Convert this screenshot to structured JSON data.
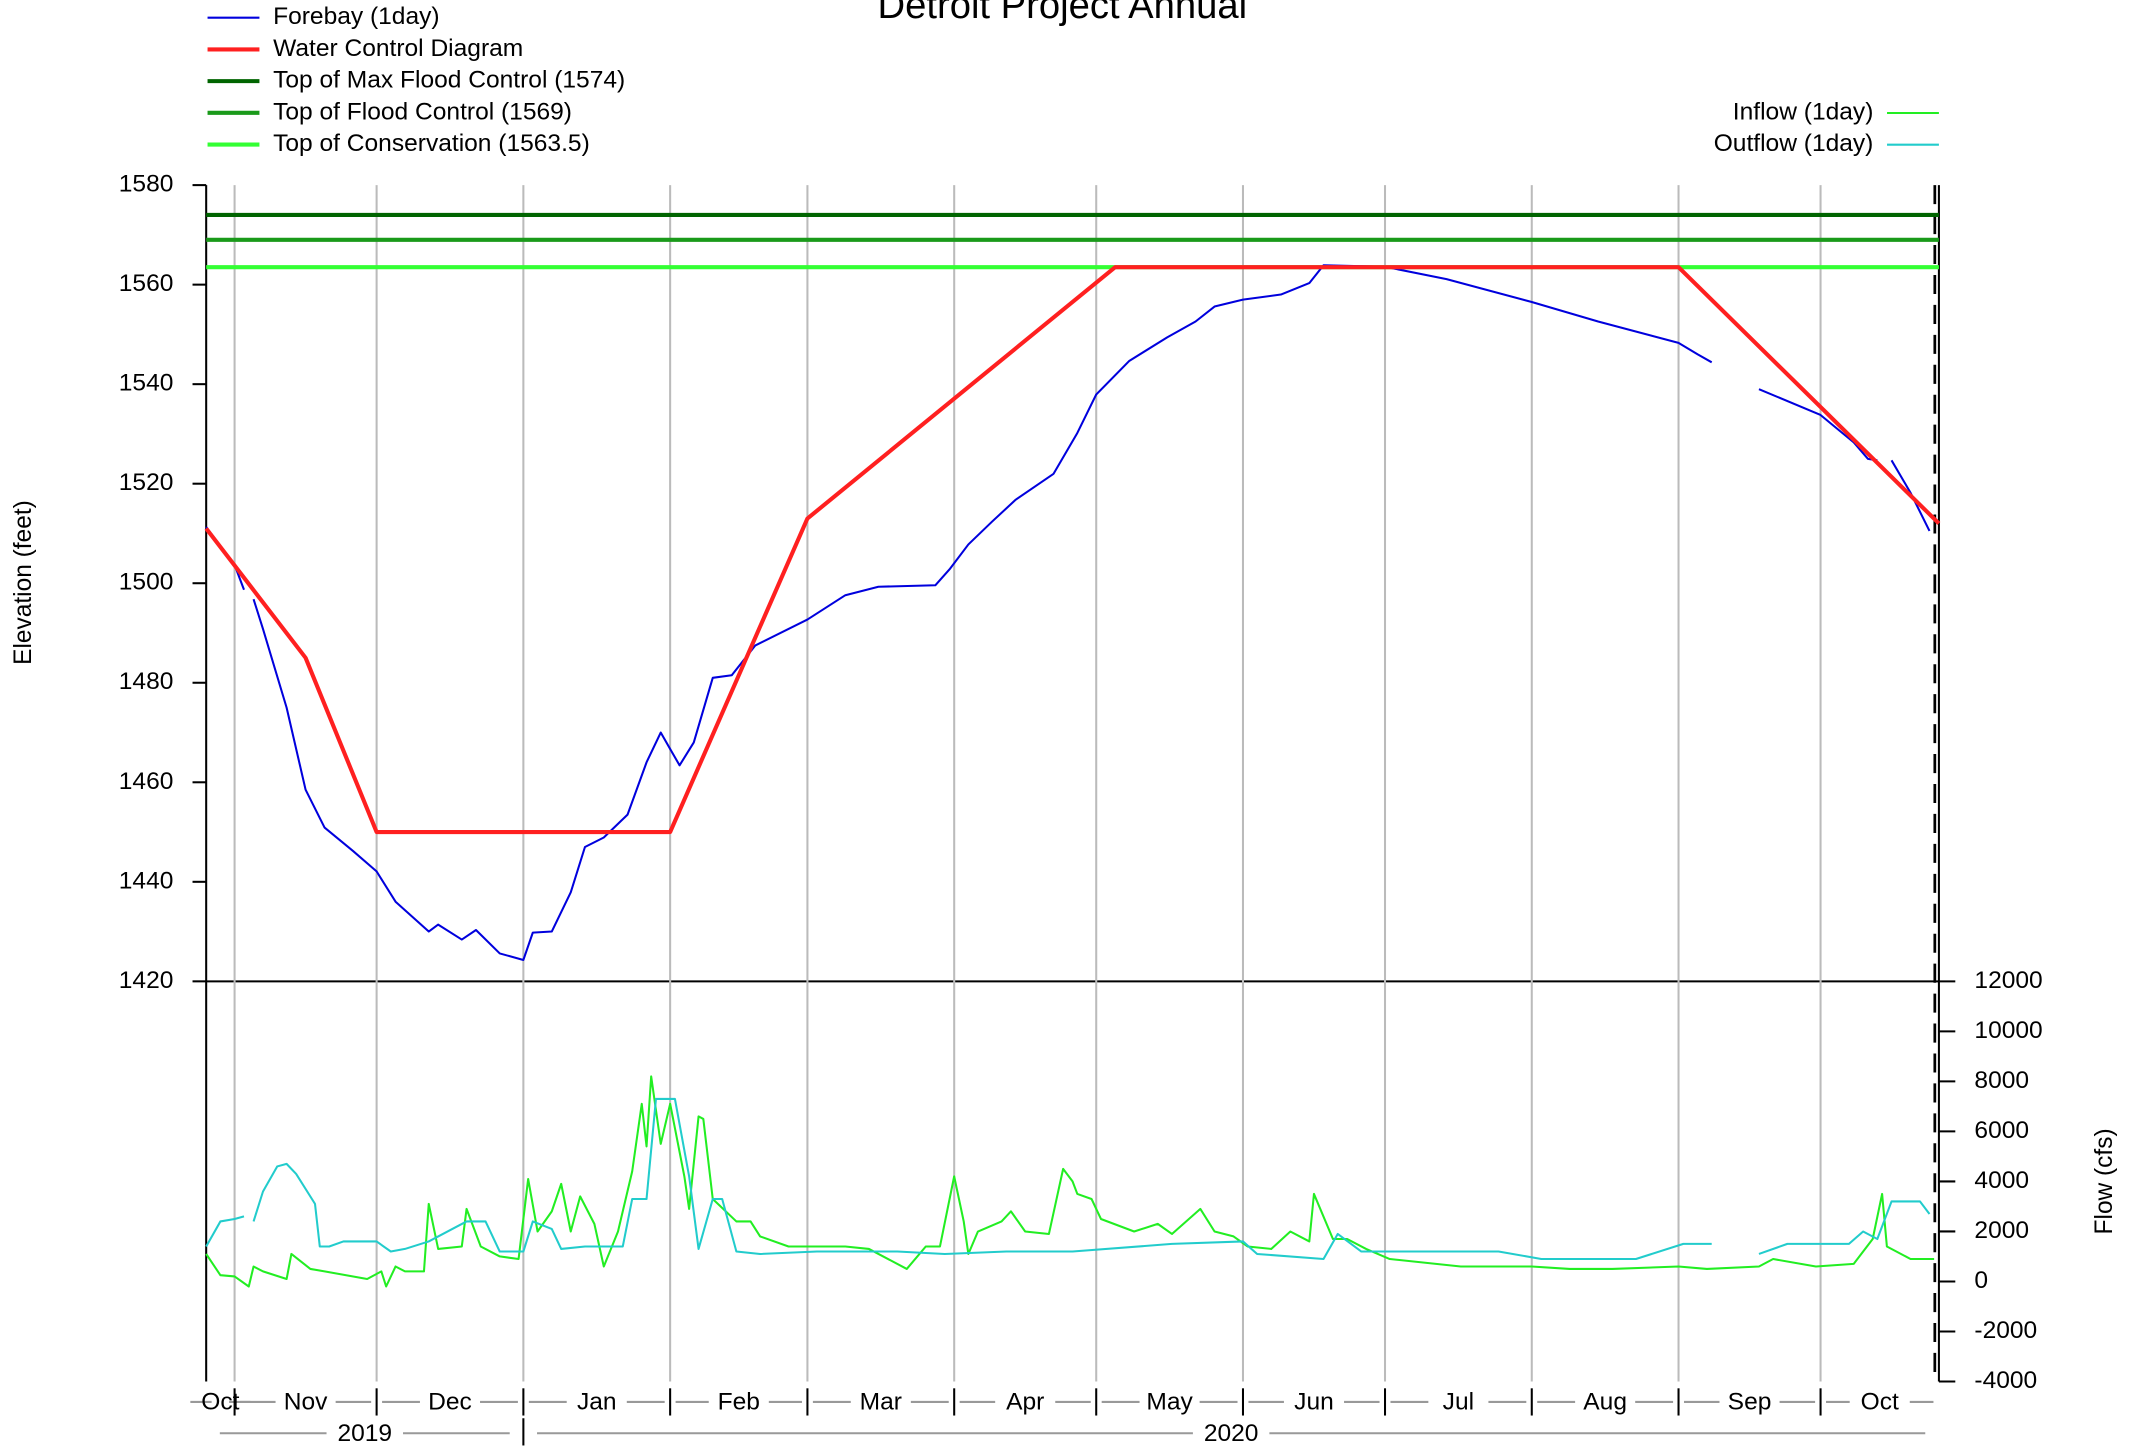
{
  "chart_data": [
    {
      "type": "line",
      "title": "Detroit Project Annual",
      "ylabel": "Elevation (feet)",
      "xlim": [
        "2019-10-26",
        "2020-10-26"
      ],
      "ylim": [
        1420,
        1580
      ],
      "yticks": [
        1420,
        1440,
        1460,
        1480,
        1500,
        1520,
        1540,
        1560,
        1580
      ],
      "series": [
        {
          "name": "Forebay (1day)",
          "color": "#0000dd",
          "width": 1.5,
          "x": [
            "2019-10-26",
            "2019-11-01",
            "2019-11-03",
            "2019-11-04",
            "2019-11-05",
            "2019-11-07",
            "2019-11-12",
            "2019-11-16",
            "2019-11-20",
            "2019-11-26",
            "2019-12-01",
            "2019-12-05",
            "2019-12-12",
            "2019-12-14",
            "2019-12-19",
            "2019-12-22",
            "2019-12-27",
            "2020-01-01",
            "2020-01-03",
            "2020-01-07",
            "2020-01-11",
            "2020-01-14",
            "2020-01-18",
            "2020-01-23",
            "2020-01-27",
            "2020-01-30",
            "2020-02-01",
            "2020-02-03",
            "2020-02-06",
            "2020-02-10",
            "2020-02-14",
            "2020-02-19",
            "2020-03-01",
            "2020-03-09",
            "2020-03-16",
            "2020-03-28",
            "2020-03-31",
            "2020-04-04",
            "2020-04-09",
            "2020-04-14",
            "2020-04-22",
            "2020-04-27",
            "2020-05-01",
            "2020-05-08",
            "2020-05-16",
            "2020-05-22",
            "2020-05-26",
            "2020-06-01",
            "2020-06-09",
            "2020-06-15",
            "2020-06-18",
            "2020-07-01",
            "2020-07-14",
            "2020-08-01",
            "2020-08-15",
            "2020-09-01",
            "2020-09-05",
            "2020-09-08",
            "2020-09-12",
            "2020-09-18",
            "2020-10-01",
            "2020-10-08",
            "2020-10-11",
            "2020-10-13",
            "2020-10-14",
            "2020-10-16",
            "2020-10-20",
            "2020-10-24"
          ],
          "values": [
            1511.3,
            1503.7,
            1498.7,
            null,
            1496.8,
            1490.8,
            1475,
            1458.5,
            1450.9,
            1446.2,
            1442.1,
            1436,
            1430,
            1431.4,
            1428.4,
            1430.3,
            1425.6,
            1424.3,
            1429.8,
            1430,
            1437.9,
            1447,
            1448.9,
            1453.5,
            1464,
            1470,
            1466.7,
            1463.4,
            1468,
            1481,
            1481.5,
            1487.5,
            1492.7,
            1497.6,
            1499.3,
            1499.6,
            1502.8,
            1507.8,
            1512.4,
            1516.8,
            1522,
            1530.2,
            1537.9,
            1544.7,
            1549.4,
            1552.6,
            1555.6,
            1557,
            1558,
            1560.3,
            1563.9,
            1563.6,
            1561.1,
            1556.5,
            1552.6,
            1548.3,
            1546,
            1544.4,
            null,
            1539,
            1533.8,
            1528.3,
            1525,
            1524.7,
            null,
            1524.7,
            1518.2,
            1510.5
          ]
        },
        {
          "name": "Water Control Diagram",
          "color": "#ff2020",
          "width": 3,
          "x": [
            "2019-10-26",
            "2019-11-16",
            "2019-12-01",
            "2020-02-01",
            "2020-03-01",
            "2020-05-05",
            "2020-09-01",
            "2020-10-26"
          ],
          "values": [
            1511,
            1485,
            1450,
            1450,
            1513,
            1563.5,
            1563.5,
            1512
          ]
        }
      ],
      "hlines": [
        {
          "name": "Top of Max Flood Control (1574)",
          "value": 1574,
          "color": "#006400"
        },
        {
          "name": "Top of Flood Control (1569)",
          "value": 1569,
          "color": "#1a9a1a"
        },
        {
          "name": "Top of Conservation (1563.5)",
          "value": 1563.5,
          "color": "#33ff33"
        }
      ]
    },
    {
      "type": "line",
      "ylabel": "Flow (cfs)",
      "xlim": [
        "2019-10-26",
        "2020-10-26"
      ],
      "ylim": [
        -4000,
        12000
      ],
      "yticks": [
        -4000,
        -2000,
        0,
        2000,
        4000,
        6000,
        8000,
        10000,
        12000
      ],
      "x_month_labels": [
        "Oct",
        "Nov",
        "Dec",
        "Jan",
        "Feb",
        "Mar",
        "Apr",
        "May",
        "Jun",
        "Jul",
        "Aug",
        "Sep",
        "Oct"
      ],
      "x_year_labels": [
        "2019",
        "2020"
      ],
      "series": [
        {
          "name": "Inflow (1day)",
          "color": "#22ee22",
          "width": 1.5,
          "x": [
            "2019-10-26",
            "2019-10-29",
            "2019-11-01",
            "2019-11-04",
            "2019-11-05",
            "2019-11-07",
            "2019-11-12",
            "2019-11-13",
            "2019-11-17",
            "2019-11-20",
            "2019-11-29",
            "2019-12-02",
            "2019-12-03",
            "2019-12-05",
            "2019-12-07",
            "2019-12-11",
            "2019-12-12",
            "2019-12-14",
            "2019-12-19",
            "2019-12-20",
            "2019-12-23",
            "2019-12-27",
            "2019-12-31",
            "2020-01-02",
            "2020-01-04",
            "2020-01-07",
            "2020-01-09",
            "2020-01-11",
            "2020-01-13",
            "2020-01-16",
            "2020-01-18",
            "2020-01-21",
            "2020-01-24",
            "2020-01-26",
            "2020-01-27",
            "2020-01-28",
            "2020-01-30",
            "2020-02-01",
            "2020-02-04",
            "2020-02-05",
            "2020-02-07",
            "2020-02-08",
            "2020-02-10",
            "2020-02-15",
            "2020-02-18",
            "2020-02-20",
            "2020-02-26",
            "2020-03-09",
            "2020-03-14",
            "2020-03-22",
            "2020-03-26",
            "2020-03-29",
            "2020-04-01",
            "2020-04-03",
            "2020-04-04",
            "2020-04-06",
            "2020-04-11",
            "2020-04-13",
            "2020-04-16",
            "2020-04-21",
            "2020-04-24",
            "2020-04-26",
            "2020-04-27",
            "2020-04-30",
            "2020-05-02",
            "2020-05-09",
            "2020-05-14",
            "2020-05-17",
            "2020-05-23",
            "2020-05-26",
            "2020-05-30",
            "2020-06-02",
            "2020-06-07",
            "2020-06-11",
            "2020-06-15",
            "2020-06-16",
            "2020-06-20",
            "2020-06-23",
            "2020-06-27",
            "2020-07-02",
            "2020-07-17",
            "2020-08-01",
            "2020-08-09",
            "2020-08-18",
            "2020-09-01",
            "2020-09-07",
            "2020-09-18",
            "2020-09-21",
            "2020-09-30",
            "2020-10-08",
            "2020-10-12",
            "2020-10-14",
            "2020-10-15",
            "2020-10-20",
            "2020-10-25"
          ],
          "values": [
            1100,
            250,
            200,
            -200,
            600,
            400,
            100,
            1100,
            500,
            400,
            100,
            400,
            -200,
            600,
            400,
            400,
            3100,
            1300,
            1400,
            2900,
            1400,
            1000,
            900,
            4100,
            2000,
            2800,
            3900,
            2000,
            3400,
            2300,
            600,
            2000,
            4400,
            7100,
            5400,
            8200,
            5500,
            7100,
            4200,
            2900,
            6600,
            6500,
            3300,
            2400,
            2400,
            1800,
            1400,
            1400,
            1300,
            500,
            1400,
            1400,
            4200,
            2400,
            1100,
            2000,
            2400,
            2800,
            2000,
            1900,
            4500,
            4000,
            3500,
            3300,
            2500,
            2000,
            2300,
            1900,
            2900,
            2000,
            1800,
            1400,
            1300,
            2000,
            1600,
            3500,
            1700,
            1700,
            1300,
            900,
            600,
            600,
            500,
            500,
            600,
            500,
            600,
            900,
            600,
            700,
            1700,
            3500,
            1400,
            900,
            900
          ]
        },
        {
          "name": "Outflow (1day)",
          "color": "#22cccc",
          "width": 1.5,
          "x": [
            "2019-10-26",
            "2019-10-29",
            "2019-11-01",
            "2019-11-03",
            "2019-11-04",
            "2019-11-05",
            "2019-11-07",
            "2019-11-10",
            "2019-11-12",
            "2019-11-14",
            "2019-11-18",
            "2019-11-19",
            "2019-11-21",
            "2019-11-24",
            "2019-12-01",
            "2019-12-04",
            "2019-12-07",
            "2019-12-12",
            "2019-12-20",
            "2019-12-24",
            "2019-12-27",
            "2020-01-01",
            "2020-01-03",
            "2020-01-07",
            "2020-01-09",
            "2020-01-14",
            "2020-01-22",
            "2020-01-24",
            "2020-01-27",
            "2020-01-29",
            "2020-02-02",
            "2020-02-05",
            "2020-02-07",
            "2020-02-10",
            "2020-02-12",
            "2020-02-15",
            "2020-02-20",
            "2020-03-03",
            "2020-03-20",
            "2020-03-30",
            "2020-04-12",
            "2020-04-26",
            "2020-05-17",
            "2020-06-01",
            "2020-06-04",
            "2020-06-18",
            "2020-06-21",
            "2020-06-26",
            "2020-07-08",
            "2020-07-25",
            "2020-08-03",
            "2020-08-23",
            "2020-09-02",
            "2020-09-08",
            "2020-09-12",
            "2020-09-18",
            "2020-09-24",
            "2020-10-07",
            "2020-10-10",
            "2020-10-13",
            "2020-10-16",
            "2020-10-22",
            "2020-10-24"
          ],
          "values": [
            1400,
            2400,
            2500,
            2600,
            null,
            2400,
            3600,
            4600,
            4700,
            4300,
            3100,
            1400,
            1400,
            1600,
            1600,
            1200,
            1300,
            1600,
            2400,
            2400,
            1200,
            1200,
            2400,
            2100,
            1300,
            1400,
            1400,
            3300,
            3300,
            7300,
            7300,
            4200,
            1300,
            3300,
            3300,
            1200,
            1100,
            1200,
            1200,
            1100,
            1200,
            1200,
            1500,
            1600,
            1100,
            900,
            1900,
            1200,
            1200,
            1200,
            900,
            900,
            1500,
            1500,
            null,
            1100,
            1500,
            1500,
            2000,
            1700,
            3200,
            3200,
            2700
          ]
        }
      ]
    }
  ]
}
